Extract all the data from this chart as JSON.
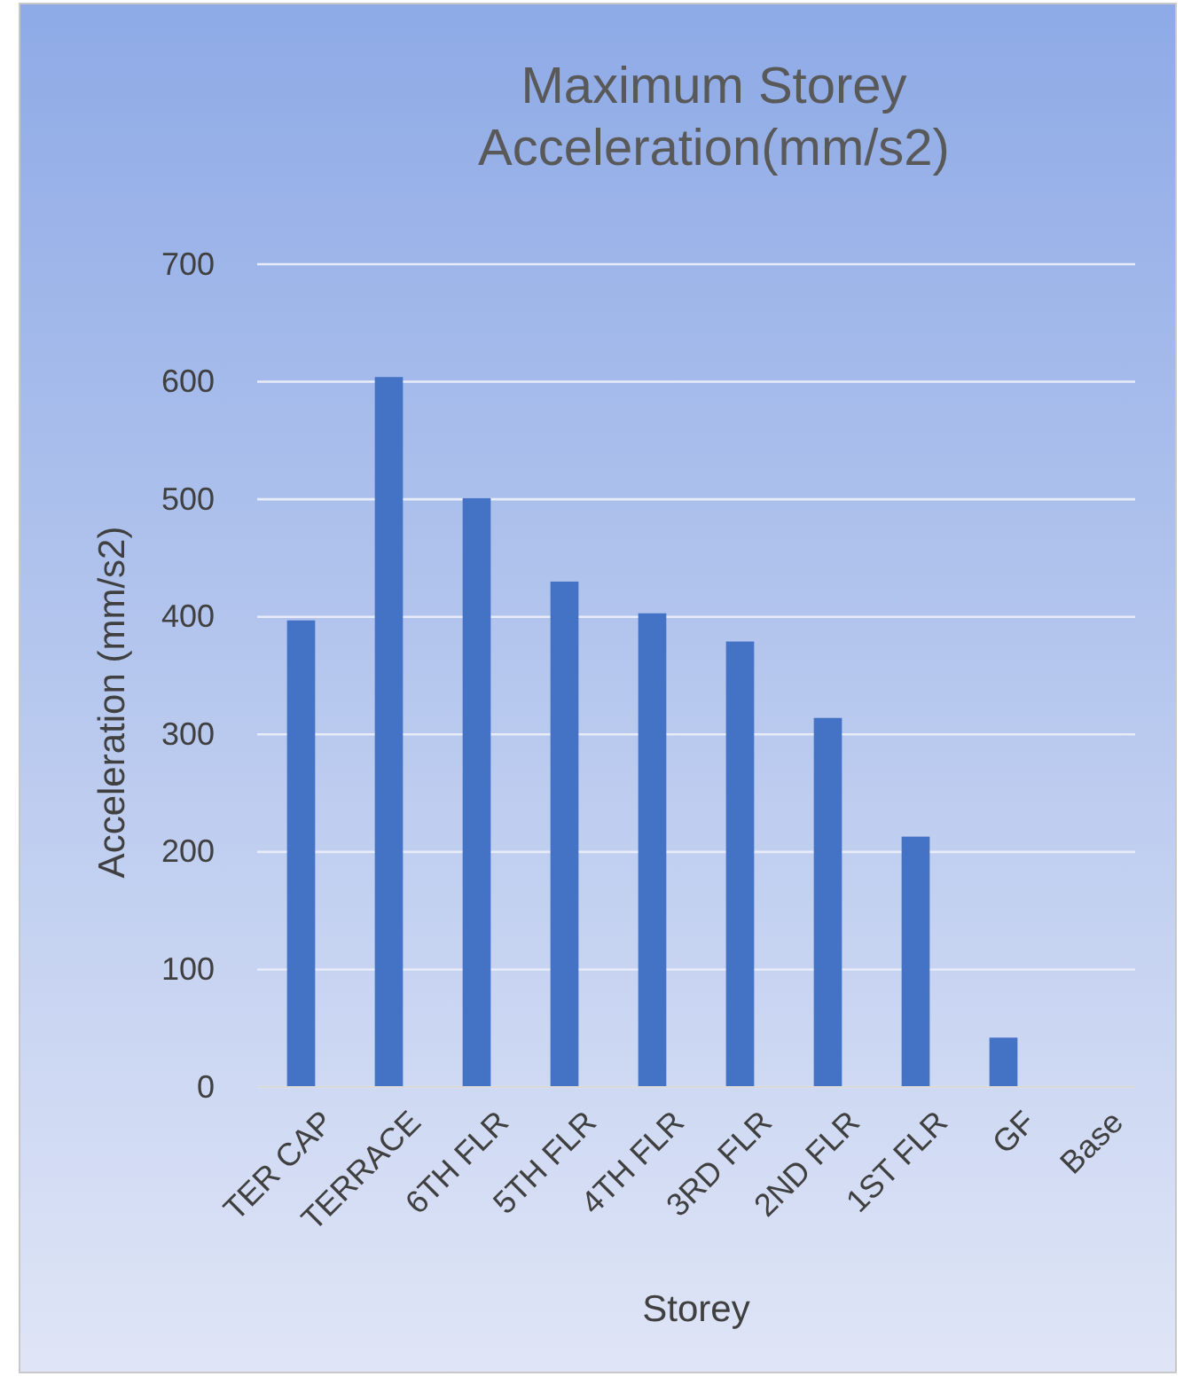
{
  "chart_data": {
    "type": "bar",
    "title": "Maximum Storey Acceleration(mm/s2)",
    "xlabel": "Storey",
    "ylabel": "Acceleration (mm/s2)",
    "categories": [
      "TER CAP",
      "TERRACE",
      "6TH FLR",
      "5TH FLR",
      "4TH FLR",
      "3RD FLR",
      "2ND FLR",
      "1ST FLR",
      "GF",
      "Base"
    ],
    "values": [
      397,
      604,
      501,
      430,
      403,
      379,
      314,
      213,
      42,
      0
    ],
    "color": "#4472c4",
    "ylim": [
      0,
      700
    ],
    "yticks": [
      0,
      100,
      200,
      300,
      400,
      500,
      600,
      700
    ],
    "grid": "y"
  }
}
